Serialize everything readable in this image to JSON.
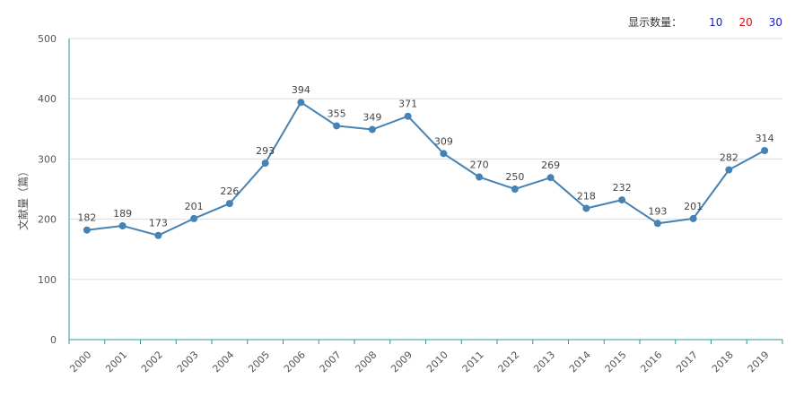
{
  "controls": {
    "label": "显示数量：",
    "options": [
      {
        "text": "10",
        "color": "#1a1acc"
      },
      {
        "text": "20",
        "color": "#e0101a"
      },
      {
        "text": "30",
        "color": "#1a1acc"
      }
    ]
  },
  "chart_data": {
    "type": "line",
    "title": "",
    "xlabel": "",
    "ylabel": "文献量（篇）",
    "ylim": [
      0,
      500
    ],
    "yticks": [
      0,
      100,
      200,
      300,
      400,
      500
    ],
    "categories": [
      "2000",
      "2001",
      "2002",
      "2003",
      "2004",
      "2005",
      "2006",
      "2007",
      "2008",
      "2009",
      "2010",
      "2011",
      "2012",
      "2013",
      "2014",
      "2015",
      "2016",
      "2017",
      "2018",
      "2019"
    ],
    "series": [
      {
        "name": "文献量",
        "color": "#4682b4",
        "values": [
          182,
          189,
          173,
          201,
          226,
          293,
          394,
          355,
          349,
          371,
          309,
          270,
          250,
          269,
          218,
          232,
          193,
          201,
          282,
          314
        ]
      }
    ],
    "grid": true,
    "data_labels": true
  }
}
